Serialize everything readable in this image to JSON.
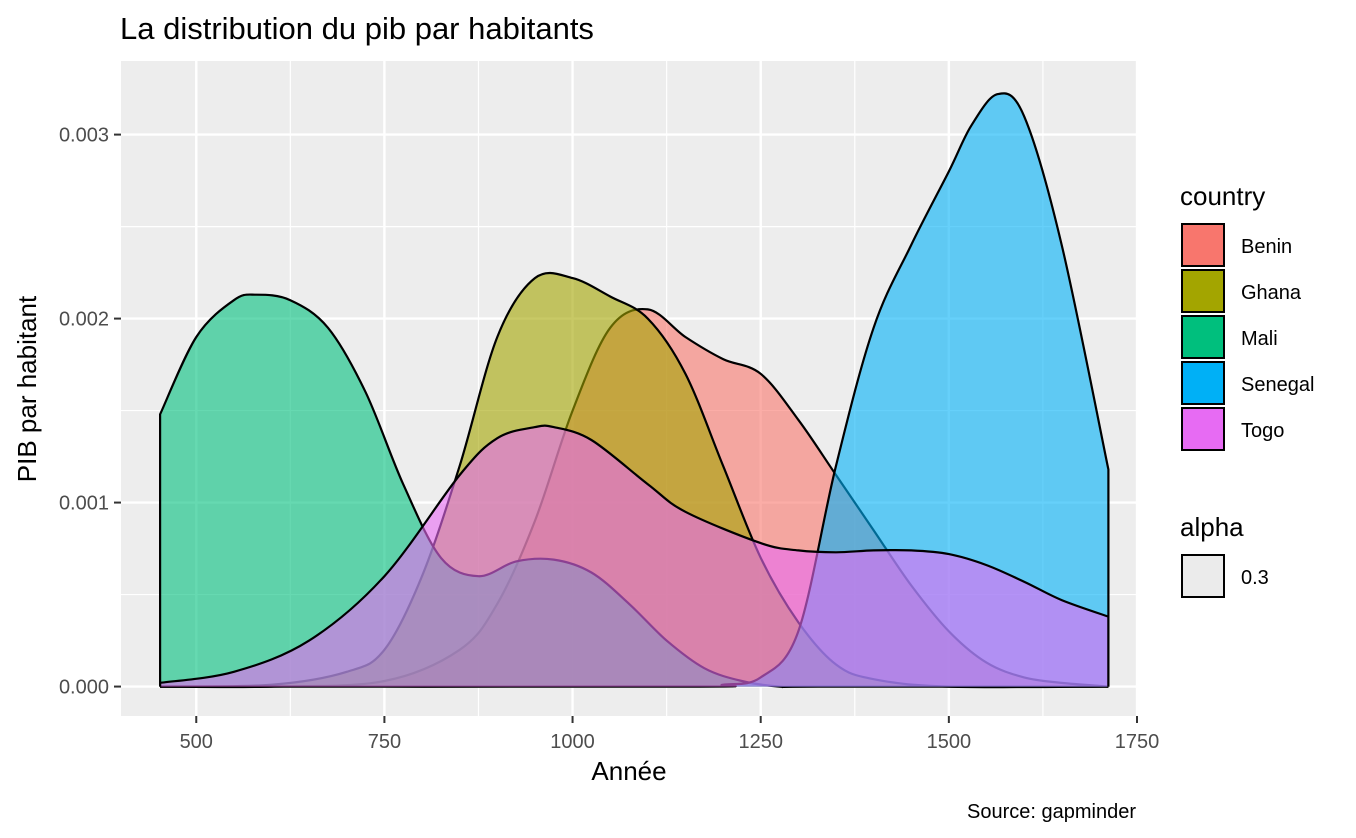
{
  "chart_data": {
    "type": "area",
    "title": "La distribution du pib par habitants",
    "xlabel": "Année",
    "ylabel": "PIB par habitant",
    "caption": "Source: gapminder",
    "xlim": [
      400,
      1750
    ],
    "ylim": [
      -0.00016,
      0.0034
    ],
    "x_ticks": [
      500,
      750,
      1000,
      1250,
      1500,
      1750
    ],
    "x_tick_labels": [
      "500",
      "750",
      "1000",
      "1250",
      "1500",
      "1750"
    ],
    "y_ticks": [
      0.0,
      0.001,
      0.002,
      0.003
    ],
    "y_tick_labels": [
      "0.000",
      "0.001",
      "0.002",
      "0.003"
    ],
    "grid": true,
    "legend_position": "right",
    "legend": {
      "fill_title": "country",
      "alpha_title": "alpha",
      "alpha_value": "0.3"
    },
    "series": [
      {
        "name": "Benin",
        "color": "#F8766D",
        "x": [
          452,
          600,
          750,
          850,
          900,
          950,
          1000,
          1050,
          1100,
          1150,
          1200,
          1250,
          1300,
          1350,
          1400,
          1450,
          1500,
          1550,
          1600,
          1650,
          1712
        ],
        "y": [
          0.0,
          0.0,
          3e-05,
          0.0002,
          0.00045,
          0.0009,
          0.0015,
          0.00195,
          0.00205,
          0.0019,
          0.00178,
          0.0017,
          0.00145,
          0.00115,
          0.00085,
          0.00055,
          0.0003,
          0.00013,
          5e-05,
          2e-05,
          0.0
        ]
      },
      {
        "name": "Ghana",
        "color": "#A3A500",
        "x": [
          452,
          600,
          700,
          750,
          800,
          850,
          900,
          950,
          1000,
          1050,
          1100,
          1150,
          1200,
          1250,
          1300,
          1350,
          1400,
          1500,
          1712
        ],
        "y": [
          0.0,
          1e-05,
          8e-05,
          0.0002,
          0.0006,
          0.0012,
          0.0019,
          0.00222,
          0.00222,
          0.00212,
          0.002,
          0.0017,
          0.0012,
          0.0007,
          0.00035,
          0.00012,
          4e-05,
          0.0,
          0.0
        ]
      },
      {
        "name": "Mali",
        "color": "#00BF7D",
        "x": [
          452,
          500,
          550,
          580,
          625,
          675,
          725,
          775,
          825,
          875,
          925,
          975,
          1025,
          1075,
          1125,
          1175,
          1225,
          1275,
          1325,
          1712
        ],
        "y": [
          0.00148,
          0.0019,
          0.0021,
          0.00213,
          0.0021,
          0.00195,
          0.0016,
          0.0011,
          0.0007,
          0.0006,
          0.00068,
          0.00069,
          0.00062,
          0.00045,
          0.00025,
          0.0001,
          3e-05,
          0.0,
          0.0,
          0.0
        ]
      },
      {
        "name": "Senegal",
        "color": "#00B0F6",
        "x": [
          452,
          1150,
          1200,
          1250,
          1300,
          1350,
          1400,
          1450,
          1500,
          1530,
          1565,
          1600,
          1650,
          1712
        ],
        "y": [
          0.0,
          0.0,
          1e-05,
          5e-05,
          0.0003,
          0.0012,
          0.00195,
          0.0024,
          0.0028,
          0.00305,
          0.00322,
          0.0031,
          0.0024,
          0.00118
        ]
      },
      {
        "name": "Togo",
        "color": "#E76BF3",
        "x": [
          452,
          550,
          650,
          750,
          850,
          900,
          950,
          975,
          1025,
          1100,
          1150,
          1250,
          1300,
          1350,
          1400,
          1450,
          1500,
          1550,
          1600,
          1650,
          1712
        ],
        "y": [
          2e-05,
          8e-05,
          0.00025,
          0.0006,
          0.00115,
          0.00135,
          0.00141,
          0.00141,
          0.00134,
          0.0011,
          0.00095,
          0.00078,
          0.00074,
          0.00073,
          0.00074,
          0.00074,
          0.00072,
          0.00066,
          0.00057,
          0.00047,
          0.00038
        ]
      }
    ]
  }
}
